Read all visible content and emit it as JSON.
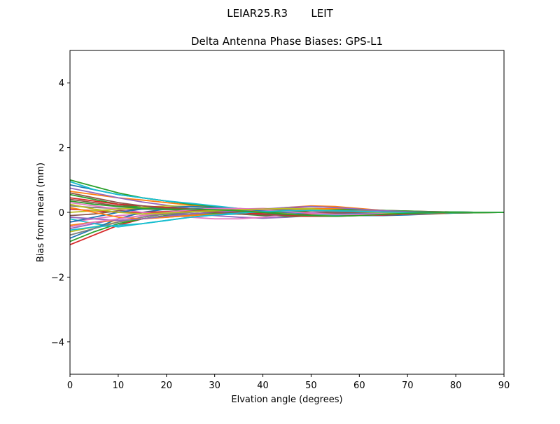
{
  "figure": {
    "suptitle": "LEIAR25.R3       LEIT"
  },
  "chart_data": {
    "type": "line",
    "title": "Delta Antenna Phase Biases: GPS-L1",
    "xlabel": "Elvation angle (degrees)",
    "ylabel": "Bias from mean (mm)",
    "xlim": [
      0,
      90
    ],
    "ylim": [
      -5,
      5
    ],
    "xticks": [
      0,
      10,
      20,
      30,
      40,
      50,
      60,
      70,
      80,
      90
    ],
    "yticks": [
      -4,
      -2,
      0,
      2,
      4
    ],
    "xtick_labels": [
      "0",
      "10",
      "20",
      "30",
      "40",
      "50",
      "60",
      "70",
      "80",
      "90"
    ],
    "ytick_labels": [
      "−4",
      "−2",
      "0",
      "2",
      "4"
    ],
    "grid": false,
    "legend": "none",
    "x": [
      0,
      5,
      10,
      15,
      20,
      25,
      30,
      35,
      40,
      45,
      50,
      55,
      60,
      65,
      70,
      75,
      80,
      85,
      90
    ],
    "series": [
      {
        "color": "#1f77b4",
        "values": [
          0.85,
          0.7,
          0.55,
          0.45,
          0.35,
          0.25,
          0.15,
          0.1,
          0.05,
          0.0,
          -0.05,
          -0.08,
          -0.1,
          -0.1,
          -0.08,
          -0.05,
          -0.02,
          -0.01,
          0
        ]
      },
      {
        "color": "#ff7f0e",
        "values": [
          0.65,
          0.55,
          0.45,
          0.38,
          0.3,
          0.22,
          0.15,
          0.08,
          0.03,
          -0.02,
          -0.05,
          -0.08,
          -0.09,
          -0.08,
          -0.06,
          -0.04,
          -0.02,
          -0.01,
          0
        ]
      },
      {
        "color": "#2ca02c",
        "values": [
          1.0,
          0.8,
          0.6,
          0.45,
          0.35,
          0.25,
          0.18,
          0.12,
          0.06,
          0.02,
          -0.02,
          -0.05,
          -0.07,
          -0.07,
          -0.05,
          -0.03,
          -0.02,
          -0.01,
          0
        ]
      },
      {
        "color": "#d62728",
        "values": [
          -1.0,
          -0.7,
          -0.4,
          -0.2,
          -0.1,
          -0.05,
          0.0,
          0.05,
          0.1,
          0.12,
          0.12,
          0.1,
          0.08,
          0.06,
          0.04,
          0.02,
          0.01,
          0.0,
          0
        ]
      },
      {
        "color": "#9467bd",
        "values": [
          -0.5,
          -0.35,
          -0.2,
          -0.1,
          -0.05,
          -0.05,
          -0.1,
          -0.15,
          -0.18,
          -0.15,
          -0.1,
          -0.05,
          -0.02,
          0.0,
          0.01,
          0.01,
          0.01,
          0.0,
          0
        ]
      },
      {
        "color": "#8c564b",
        "values": [
          0.4,
          0.3,
          0.2,
          0.15,
          0.12,
          0.08,
          0.05,
          0.02,
          0.0,
          -0.03,
          -0.05,
          -0.06,
          -0.06,
          -0.05,
          -0.04,
          -0.02,
          -0.01,
          0.0,
          0
        ]
      },
      {
        "color": "#e377c2",
        "values": [
          -0.3,
          -0.2,
          -0.1,
          -0.05,
          0.0,
          0.05,
          0.08,
          0.1,
          0.12,
          0.1,
          0.07,
          0.04,
          0.02,
          0.0,
          -0.01,
          -0.01,
          0.0,
          0.0,
          0
        ]
      },
      {
        "color": "#7f7f7f",
        "values": [
          0.2,
          0.15,
          0.12,
          0.1,
          0.08,
          0.06,
          0.03,
          0.0,
          -0.02,
          -0.04,
          -0.05,
          -0.05,
          -0.04,
          -0.03,
          -0.02,
          -0.01,
          0.0,
          0.0,
          0
        ]
      },
      {
        "color": "#bcbd22",
        "values": [
          -0.6,
          -0.45,
          -0.3,
          -0.2,
          -0.12,
          -0.08,
          -0.05,
          0.0,
          0.05,
          0.1,
          0.12,
          0.1,
          0.07,
          0.04,
          0.02,
          0.01,
          0.0,
          0.0,
          0
        ]
      },
      {
        "color": "#17becf",
        "values": [
          -0.2,
          -0.35,
          -0.45,
          -0.35,
          -0.25,
          -0.15,
          -0.08,
          -0.05,
          -0.08,
          -0.1,
          -0.08,
          -0.05,
          -0.02,
          0.0,
          0.01,
          0.01,
          0.01,
          0.0,
          0
        ]
      },
      {
        "color": "#1f77b4",
        "values": [
          -0.8,
          -0.5,
          -0.2,
          0.0,
          0.1,
          0.12,
          0.1,
          0.05,
          0.0,
          -0.05,
          -0.08,
          -0.08,
          -0.06,
          -0.04,
          -0.02,
          -0.01,
          0.0,
          0.0,
          0
        ]
      },
      {
        "color": "#ff7f0e",
        "values": [
          -0.4,
          -0.3,
          -0.25,
          -0.2,
          -0.15,
          -0.1,
          -0.05,
          0.0,
          0.08,
          0.15,
          0.2,
          0.18,
          0.12,
          0.06,
          0.02,
          0.0,
          0.0,
          0.0,
          0
        ]
      },
      {
        "color": "#2ca02c",
        "values": [
          0.55,
          0.4,
          0.25,
          0.15,
          0.1,
          0.05,
          0.0,
          -0.05,
          -0.1,
          -0.12,
          -0.12,
          -0.08,
          -0.04,
          -0.01,
          0.0,
          0.01,
          0.0,
          0.0,
          0
        ]
      },
      {
        "color": "#d62728",
        "values": [
          0.1,
          0.05,
          0.0,
          0.0,
          0.02,
          0.05,
          0.08,
          0.1,
          0.08,
          0.05,
          0.0,
          -0.05,
          -0.08,
          -0.08,
          -0.06,
          -0.03,
          -0.01,
          0.0,
          0
        ]
      },
      {
        "color": "#9467bd",
        "values": [
          0.75,
          0.6,
          0.45,
          0.32,
          0.22,
          0.12,
          0.05,
          0.0,
          -0.05,
          -0.08,
          -0.08,
          -0.06,
          -0.04,
          -0.02,
          -0.01,
          0.0,
          0.0,
          0.0,
          0
        ]
      },
      {
        "color": "#8c564b",
        "values": [
          -0.1,
          -0.05,
          0.05,
          0.1,
          0.12,
          0.1,
          0.05,
          0.0,
          -0.05,
          -0.05,
          -0.02,
          0.0,
          0.02,
          0.02,
          0.01,
          0.0,
          0.0,
          0.0,
          0
        ]
      },
      {
        "color": "#e377c2",
        "values": [
          0.3,
          0.2,
          0.1,
          0.0,
          -0.08,
          -0.15,
          -0.2,
          -0.2,
          -0.15,
          -0.08,
          0.0,
          0.05,
          0.06,
          0.05,
          0.03,
          0.01,
          0.0,
          0.0,
          0
        ]
      },
      {
        "color": "#7f7f7f",
        "values": [
          -0.7,
          -0.5,
          -0.3,
          -0.15,
          -0.05,
          0.0,
          0.05,
          0.08,
          0.1,
          0.08,
          0.05,
          0.02,
          0.0,
          -0.01,
          -0.01,
          0.0,
          0.0,
          0.0,
          0
        ]
      },
      {
        "color": "#bcbd22",
        "values": [
          0.0,
          0.05,
          0.1,
          0.15,
          0.2,
          0.18,
          0.12,
          0.05,
          0.0,
          -0.05,
          -0.08,
          -0.08,
          -0.06,
          -0.04,
          -0.02,
          -0.01,
          0.0,
          0.0,
          0
        ]
      },
      {
        "color": "#17becf",
        "values": [
          0.95,
          0.7,
          0.55,
          0.45,
          0.35,
          0.28,
          0.2,
          0.12,
          0.06,
          0.0,
          -0.05,
          -0.08,
          -0.08,
          -0.06,
          -0.04,
          -0.02,
          -0.01,
          0.0,
          0
        ]
      },
      {
        "color": "#1f77b4",
        "values": [
          -0.3,
          -0.15,
          0.0,
          0.1,
          0.15,
          0.18,
          0.15,
          0.1,
          0.05,
          0.0,
          -0.03,
          -0.05,
          -0.05,
          -0.04,
          -0.02,
          -0.01,
          0.0,
          0.0,
          0
        ]
      },
      {
        "color": "#ff7f0e",
        "values": [
          0.15,
          0.0,
          -0.15,
          -0.2,
          -0.15,
          -0.1,
          -0.05,
          -0.02,
          0.0,
          0.05,
          0.1,
          0.12,
          0.1,
          0.06,
          0.03,
          0.01,
          0.0,
          0.0,
          0
        ]
      },
      {
        "color": "#2ca02c",
        "values": [
          -0.9,
          -0.6,
          -0.35,
          -0.2,
          -0.1,
          -0.05,
          -0.02,
          0.0,
          0.0,
          0.02,
          0.05,
          0.08,
          0.08,
          0.06,
          0.04,
          0.02,
          0.01,
          0.0,
          0
        ]
      },
      {
        "color": "#d62728",
        "values": [
          0.45,
          0.35,
          0.25,
          0.2,
          0.15,
          0.1,
          0.05,
          0.0,
          -0.05,
          -0.1,
          -0.12,
          -0.12,
          -0.1,
          -0.06,
          -0.03,
          -0.01,
          0.0,
          0.0,
          0
        ]
      },
      {
        "color": "#9467bd",
        "values": [
          -0.15,
          -0.2,
          -0.25,
          -0.2,
          -0.12,
          -0.05,
          0.0,
          0.05,
          0.1,
          0.15,
          0.18,
          0.15,
          0.1,
          0.05,
          0.02,
          0.0,
          0.0,
          0.0,
          0
        ]
      },
      {
        "color": "#8c564b",
        "values": [
          0.6,
          0.45,
          0.3,
          0.2,
          0.12,
          0.06,
          0.0,
          -0.05,
          -0.08,
          -0.08,
          -0.05,
          -0.02,
          0.0,
          0.01,
          0.01,
          0.01,
          0.0,
          0.0,
          0
        ]
      },
      {
        "color": "#e377c2",
        "values": [
          -0.45,
          -0.3,
          -0.2,
          -0.1,
          0.0,
          0.08,
          0.12,
          0.12,
          0.08,
          0.02,
          -0.03,
          -0.06,
          -0.06,
          -0.04,
          -0.02,
          -0.01,
          0.0,
          0.0,
          0
        ]
      },
      {
        "color": "#bcbd22",
        "values": [
          0.25,
          0.1,
          0.0,
          -0.05,
          -0.02,
          0.02,
          0.05,
          0.08,
          0.1,
          0.12,
          0.1,
          0.06,
          0.02,
          -0.01,
          -0.02,
          -0.01,
          0.0,
          0.0,
          0
        ]
      },
      {
        "color": "#17becf",
        "values": [
          -0.55,
          -0.45,
          -0.4,
          -0.35,
          -0.25,
          -0.15,
          -0.08,
          -0.02,
          0.02,
          0.05,
          0.06,
          0.05,
          0.03,
          0.01,
          0.0,
          0.0,
          0.0,
          0.0,
          0
        ]
      },
      {
        "color": "#2ca02c",
        "values": [
          0.35,
          0.25,
          0.18,
          0.12,
          0.1,
          0.1,
          0.08,
          0.05,
          0.0,
          -0.06,
          -0.1,
          -0.12,
          -0.1,
          -0.06,
          -0.03,
          -0.01,
          0.0,
          0.0,
          0
        ]
      }
    ]
  }
}
